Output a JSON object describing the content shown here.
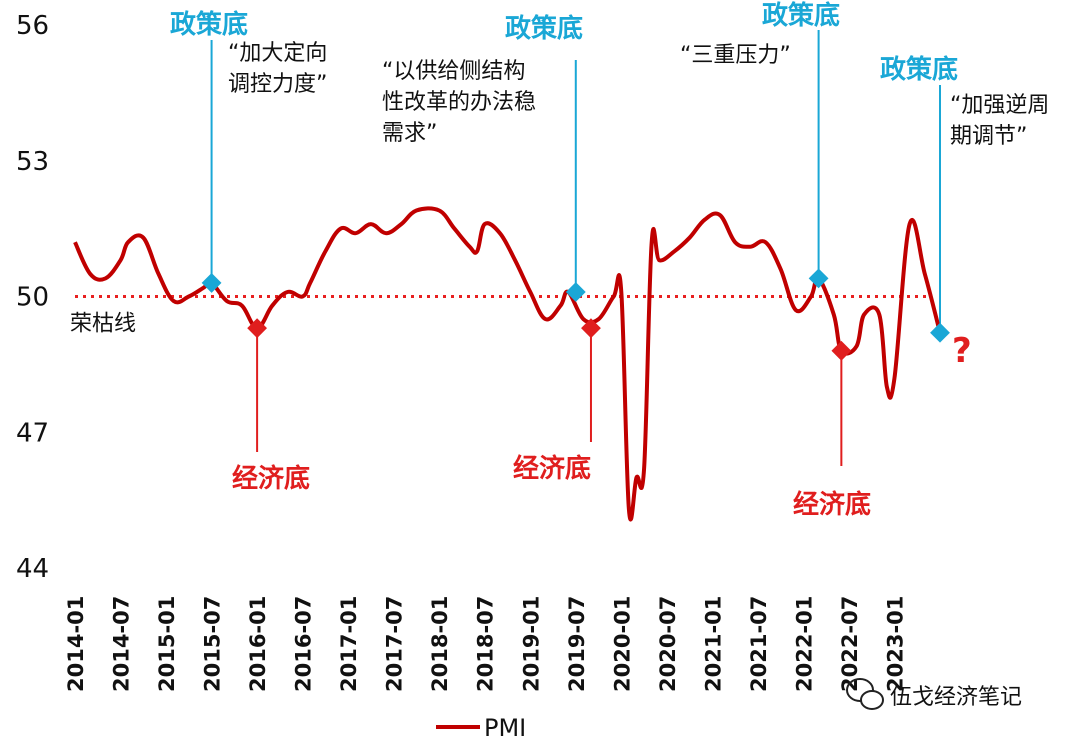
{
  "chart_data": {
    "type": "line",
    "title": "",
    "xlabel": "",
    "ylabel": "",
    "ylim": [
      44,
      56
    ],
    "yticks": [
      "56",
      "53",
      "50",
      "47",
      "44"
    ],
    "x_tick_labels": [
      "2014-01",
      "2014-07",
      "2015-01",
      "2015-07",
      "2016-01",
      "2016-07",
      "2017-01",
      "2017-07",
      "2018-01",
      "2018-07",
      "2019-01",
      "2019-07",
      "2020-01",
      "2020-07",
      "2021-01",
      "2021-07",
      "2022-01",
      "2022-07",
      "2023-01"
    ],
    "reference_line": {
      "y": 50,
      "label": "荣枯线",
      "color": "#e82020"
    },
    "legend": {
      "position": "bottom-center",
      "entries": [
        "PMI"
      ]
    },
    "series": [
      {
        "name": "PMI",
        "color": "#c00000",
        "points": [
          [
            "2014-01",
            51.2
          ],
          [
            "2014-03",
            50.5
          ],
          [
            "2014-05",
            50.4
          ],
          [
            "2014-07",
            50.8
          ],
          [
            "2014-08",
            51.2
          ],
          [
            "2014-10",
            51.3
          ],
          [
            "2014-12",
            50.5
          ],
          [
            "2015-02",
            49.9
          ],
          [
            "2015-04",
            50.0
          ],
          [
            "2015-06",
            50.2
          ],
          [
            "2015-07",
            50.3
          ],
          [
            "2015-09",
            49.9
          ],
          [
            "2015-11",
            49.8
          ],
          [
            "2016-01",
            49.3
          ],
          [
            "2016-03",
            49.8
          ],
          [
            "2016-05",
            50.1
          ],
          [
            "2016-07",
            50.0
          ],
          [
            "2016-08",
            50.3
          ],
          [
            "2016-10",
            51.0
          ],
          [
            "2016-12",
            51.5
          ],
          [
            "2017-02",
            51.4
          ],
          [
            "2017-04",
            51.6
          ],
          [
            "2017-06",
            51.4
          ],
          [
            "2017-08",
            51.6
          ],
          [
            "2017-10",
            51.9
          ],
          [
            "2018-01",
            51.9
          ],
          [
            "2018-03",
            51.5
          ],
          [
            "2018-05",
            51.1
          ],
          [
            "2018-06",
            51.0
          ],
          [
            "2018-07",
            51.6
          ],
          [
            "2018-09",
            51.4
          ],
          [
            "2018-11",
            50.8
          ],
          [
            "2019-01",
            50.1
          ],
          [
            "2019-03",
            49.5
          ],
          [
            "2019-05",
            49.8
          ],
          [
            "2019-06",
            50.1
          ],
          [
            "2019-08",
            49.5
          ],
          [
            "2019-10",
            49.5
          ],
          [
            "2019-12",
            50.0
          ],
          [
            "2020-01",
            50.1
          ],
          [
            "2020-02",
            45.3
          ],
          [
            "2020-03",
            46.0
          ],
          [
            "2020-04",
            46.2
          ],
          [
            "2020-05",
            51.2
          ],
          [
            "2020-06",
            50.8
          ],
          [
            "2020-08",
            51.0
          ],
          [
            "2020-10",
            51.3
          ],
          [
            "2020-12",
            51.7
          ],
          [
            "2021-02",
            51.8
          ],
          [
            "2021-04",
            51.2
          ],
          [
            "2021-06",
            51.1
          ],
          [
            "2021-08",
            51.2
          ],
          [
            "2021-10",
            50.6
          ],
          [
            "2021-12",
            49.7
          ],
          [
            "2022-02",
            50.0
          ],
          [
            "2022-03",
            50.4
          ],
          [
            "2022-05",
            49.6
          ],
          [
            "2022-06",
            48.8
          ],
          [
            "2022-08",
            48.9
          ],
          [
            "2022-09",
            49.6
          ],
          [
            "2022-11",
            49.6
          ],
          [
            "2022-12",
            48.0
          ],
          [
            "2023-01",
            48.2
          ],
          [
            "2023-03",
            51.6
          ],
          [
            "2023-05",
            50.5
          ],
          [
            "2023-07",
            49.2
          ]
        ]
      }
    ],
    "policy_markers": [
      {
        "x": "2015-07",
        "y": 50.3,
        "label": "政策底",
        "quote": [
          "“加大定向",
          "调控力度”"
        ]
      },
      {
        "x": "2019-07",
        "y": 50.1,
        "label": "政策底",
        "quote": [
          "“以供给侧结构",
          "性改革的办法稳",
          "需求”"
        ]
      },
      {
        "x": "2022-03",
        "y": 50.4,
        "label": "政策底",
        "quote": [
          "“三重压力”"
        ]
      },
      {
        "x": "2023-07",
        "y": 49.2,
        "label": "政策底",
        "quote": [
          "“加强逆周",
          "期调节”"
        ]
      }
    ],
    "economic_markers": [
      {
        "x": "2016-01",
        "y": 49.3,
        "label": "经济底"
      },
      {
        "x": "2019-09",
        "y": 49.3,
        "label": "经济底"
      },
      {
        "x": "2022-06",
        "y": 48.8,
        "label": "经济底"
      }
    ],
    "question_mark": "?",
    "colors": {
      "line": "#c00000",
      "policy": "#1aa7d6",
      "economic": "#e01e1e",
      "reference": "#e82020"
    }
  },
  "watermark": {
    "text": "伍戈经济笔记",
    "icon": "wechat-icon"
  }
}
